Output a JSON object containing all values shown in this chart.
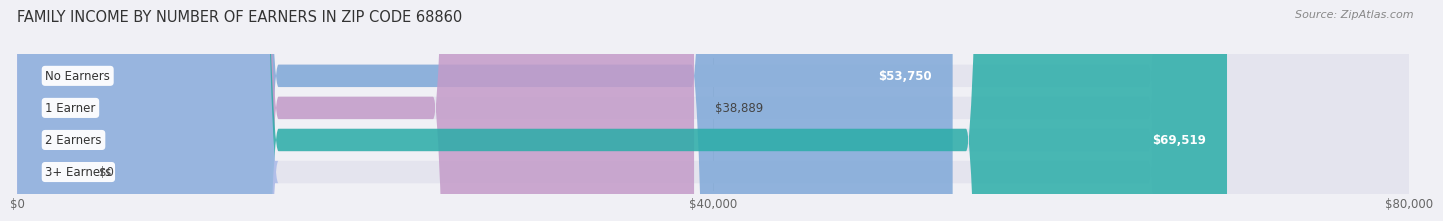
{
  "title": "FAMILY INCOME BY NUMBER OF EARNERS IN ZIP CODE 68860",
  "source": "Source: ZipAtlas.com",
  "categories": [
    "No Earners",
    "1 Earner",
    "2 Earners",
    "3+ Earners"
  ],
  "values": [
    53750,
    38889,
    69519,
    0
  ],
  "bar_colors": [
    "#7fa8d8",
    "#c49bc9",
    "#2aada8",
    "#a8b8e8"
  ],
  "value_label_colors": [
    "#ffffff",
    "#555555",
    "#ffffff",
    "#555555"
  ],
  "value_labels": [
    "$53,750",
    "$38,889",
    "$69,519",
    "$0"
  ],
  "xlim": [
    0,
    80000
  ],
  "xticks": [
    0,
    40000,
    80000
  ],
  "xtick_labels": [
    "$0",
    "$40,000",
    "$80,000"
  ],
  "background_color": "#f0f0f5",
  "bar_background": "#e4e4ee",
  "title_fontsize": 10.5,
  "source_fontsize": 8,
  "label_fontsize": 8.5,
  "value_fontsize": 8.5
}
